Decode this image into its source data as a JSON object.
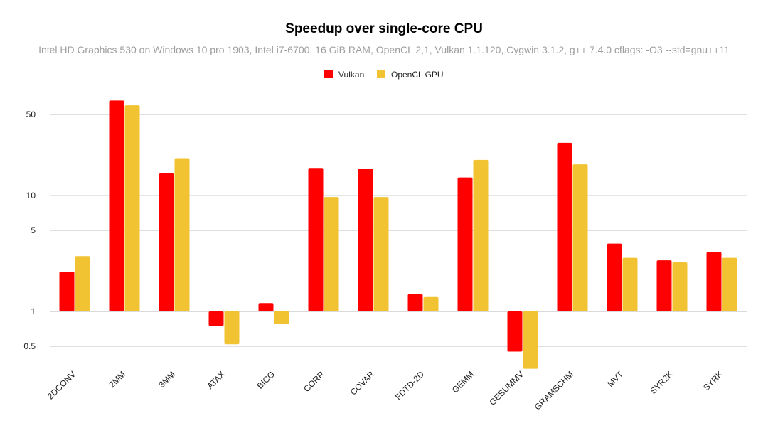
{
  "chart_data": {
    "type": "bar",
    "title": "Speedup over single-core CPU",
    "subtitle": "Intel HD Graphics 530 on Windows 10 pro 1903, Intel i7-6700, 16 GiB RAM, OpenCL 2,1, Vulkan 1.1.120, Cygwin 3.1.2, g++ 7.4.0 cflags: -O3 --std=gnu++11",
    "xlabel": "",
    "ylabel": "",
    "yscale": "log",
    "ylim": [
      0.35,
      120
    ],
    "yticks": [
      0.5,
      1,
      5,
      10,
      50
    ],
    "ytick_labels": [
      "0.5",
      "1",
      "5",
      "10",
      "50"
    ],
    "baseline": 1,
    "grid": true,
    "legend_position": "top",
    "categories": [
      "2DCONV",
      "2MM",
      "3MM",
      "ATAX",
      "BICG",
      "CORR",
      "COVAR",
      "FDTD-2D",
      "GEMM",
      "GESUMMV",
      "GRAMSCHM",
      "MVT",
      "SYR2K",
      "SYRK"
    ],
    "series": [
      {
        "name": "Vulkan",
        "color": "#ff0000",
        "values": [
          2.2,
          66,
          15.5,
          0.75,
          1.18,
          17.3,
          17.1,
          1.41,
          14.3,
          0.45,
          28.5,
          3.85,
          2.76,
          3.25
        ]
      },
      {
        "name": "OpenCL GPU",
        "color": "#f1c232",
        "values": [
          3.0,
          60,
          21,
          0.52,
          0.78,
          9.7,
          9.7,
          1.33,
          20.3,
          0.32,
          18.6,
          2.9,
          2.65,
          2.9
        ]
      }
    ]
  }
}
